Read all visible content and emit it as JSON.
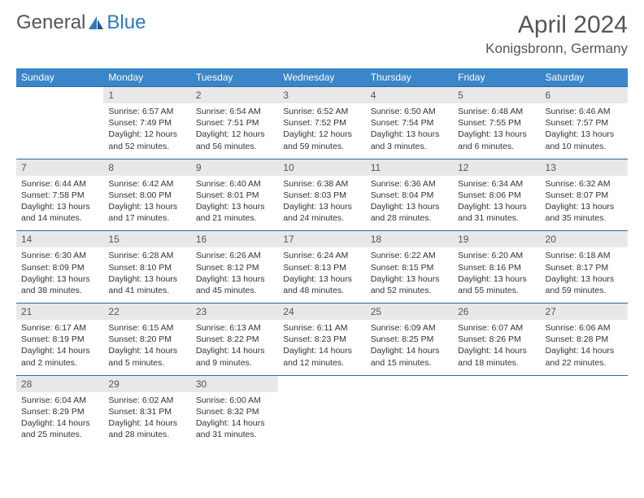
{
  "logo": {
    "text1": "General",
    "text2": "Blue"
  },
  "title": "April 2024",
  "location": "Konigsbronn, Germany",
  "colors": {
    "header_bg": "#3a86c8",
    "header_text": "#ffffff",
    "daynum_bg": "#e8e8e8",
    "daynum_text": "#555555",
    "border": "#2b6aa0",
    "body_text": "#333333",
    "logo_accent": "#2b7bbf"
  },
  "weekdays": [
    "Sunday",
    "Monday",
    "Tuesday",
    "Wednesday",
    "Thursday",
    "Friday",
    "Saturday"
  ],
  "weeks": [
    [
      null,
      {
        "n": "1",
        "sr": "6:57 AM",
        "ss": "7:49 PM",
        "dl": "12 hours and 52 minutes."
      },
      {
        "n": "2",
        "sr": "6:54 AM",
        "ss": "7:51 PM",
        "dl": "12 hours and 56 minutes."
      },
      {
        "n": "3",
        "sr": "6:52 AM",
        "ss": "7:52 PM",
        "dl": "12 hours and 59 minutes."
      },
      {
        "n": "4",
        "sr": "6:50 AM",
        "ss": "7:54 PM",
        "dl": "13 hours and 3 minutes."
      },
      {
        "n": "5",
        "sr": "6:48 AM",
        "ss": "7:55 PM",
        "dl": "13 hours and 6 minutes."
      },
      {
        "n": "6",
        "sr": "6:46 AM",
        "ss": "7:57 PM",
        "dl": "13 hours and 10 minutes."
      }
    ],
    [
      {
        "n": "7",
        "sr": "6:44 AM",
        "ss": "7:58 PM",
        "dl": "13 hours and 14 minutes."
      },
      {
        "n": "8",
        "sr": "6:42 AM",
        "ss": "8:00 PM",
        "dl": "13 hours and 17 minutes."
      },
      {
        "n": "9",
        "sr": "6:40 AM",
        "ss": "8:01 PM",
        "dl": "13 hours and 21 minutes."
      },
      {
        "n": "10",
        "sr": "6:38 AM",
        "ss": "8:03 PM",
        "dl": "13 hours and 24 minutes."
      },
      {
        "n": "11",
        "sr": "6:36 AM",
        "ss": "8:04 PM",
        "dl": "13 hours and 28 minutes."
      },
      {
        "n": "12",
        "sr": "6:34 AM",
        "ss": "8:06 PM",
        "dl": "13 hours and 31 minutes."
      },
      {
        "n": "13",
        "sr": "6:32 AM",
        "ss": "8:07 PM",
        "dl": "13 hours and 35 minutes."
      }
    ],
    [
      {
        "n": "14",
        "sr": "6:30 AM",
        "ss": "8:09 PM",
        "dl": "13 hours and 38 minutes."
      },
      {
        "n": "15",
        "sr": "6:28 AM",
        "ss": "8:10 PM",
        "dl": "13 hours and 41 minutes."
      },
      {
        "n": "16",
        "sr": "6:26 AM",
        "ss": "8:12 PM",
        "dl": "13 hours and 45 minutes."
      },
      {
        "n": "17",
        "sr": "6:24 AM",
        "ss": "8:13 PM",
        "dl": "13 hours and 48 minutes."
      },
      {
        "n": "18",
        "sr": "6:22 AM",
        "ss": "8:15 PM",
        "dl": "13 hours and 52 minutes."
      },
      {
        "n": "19",
        "sr": "6:20 AM",
        "ss": "8:16 PM",
        "dl": "13 hours and 55 minutes."
      },
      {
        "n": "20",
        "sr": "6:18 AM",
        "ss": "8:17 PM",
        "dl": "13 hours and 59 minutes."
      }
    ],
    [
      {
        "n": "21",
        "sr": "6:17 AM",
        "ss": "8:19 PM",
        "dl": "14 hours and 2 minutes."
      },
      {
        "n": "22",
        "sr": "6:15 AM",
        "ss": "8:20 PM",
        "dl": "14 hours and 5 minutes."
      },
      {
        "n": "23",
        "sr": "6:13 AM",
        "ss": "8:22 PM",
        "dl": "14 hours and 9 minutes."
      },
      {
        "n": "24",
        "sr": "6:11 AM",
        "ss": "8:23 PM",
        "dl": "14 hours and 12 minutes."
      },
      {
        "n": "25",
        "sr": "6:09 AM",
        "ss": "8:25 PM",
        "dl": "14 hours and 15 minutes."
      },
      {
        "n": "26",
        "sr": "6:07 AM",
        "ss": "8:26 PM",
        "dl": "14 hours and 18 minutes."
      },
      {
        "n": "27",
        "sr": "6:06 AM",
        "ss": "8:28 PM",
        "dl": "14 hours and 22 minutes."
      }
    ],
    [
      {
        "n": "28",
        "sr": "6:04 AM",
        "ss": "8:29 PM",
        "dl": "14 hours and 25 minutes."
      },
      {
        "n": "29",
        "sr": "6:02 AM",
        "ss": "8:31 PM",
        "dl": "14 hours and 28 minutes."
      },
      {
        "n": "30",
        "sr": "6:00 AM",
        "ss": "8:32 PM",
        "dl": "14 hours and 31 minutes."
      },
      null,
      null,
      null,
      null
    ]
  ],
  "labels": {
    "sunrise": "Sunrise:",
    "sunset": "Sunset:",
    "daylight": "Daylight:"
  }
}
